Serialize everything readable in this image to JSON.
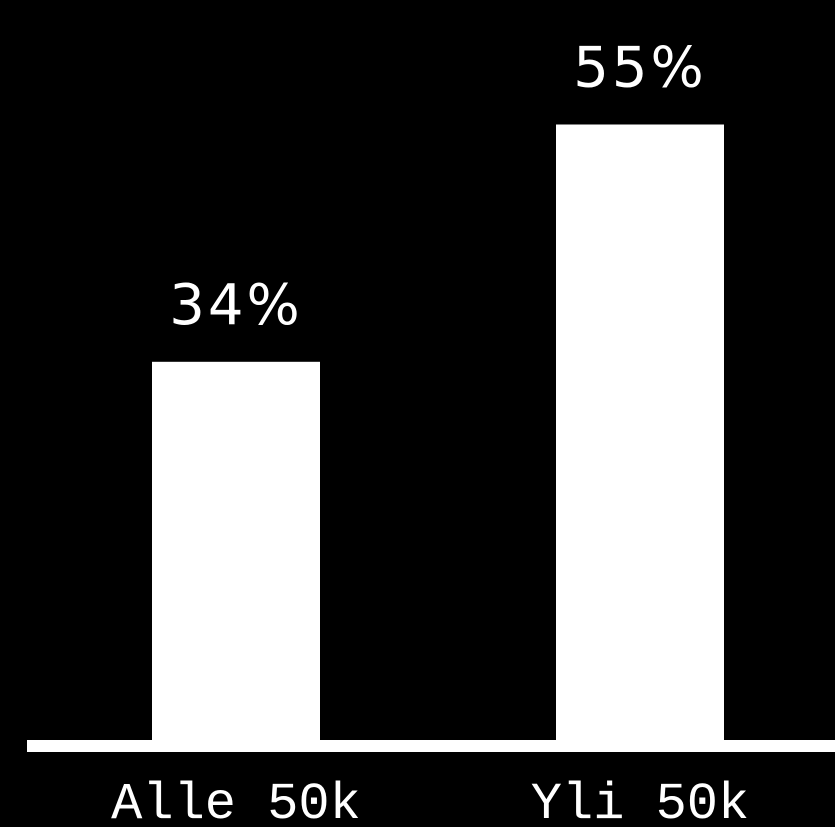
{
  "chart_data": {
    "type": "bar",
    "categories": [
      "Alle 50k",
      "Yli 50k"
    ],
    "values": [
      34,
      55
    ],
    "value_labels": [
      "34%",
      "55%"
    ],
    "unit": "%",
    "title": "",
    "xlabel": "",
    "ylabel": "",
    "ylim": [
      0,
      60
    ],
    "grid": false,
    "legend": "none"
  },
  "colors": {
    "background": "#000000",
    "bars": "#ffffff",
    "text": "#ffffff",
    "axis": "#ffffff"
  }
}
